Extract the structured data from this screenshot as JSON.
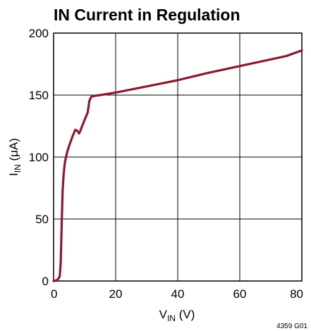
{
  "chart_data": {
    "type": "line",
    "title": "IN Current in Regulation",
    "xlabel": {
      "main": "V",
      "sub": "IN",
      "unit": " (V)"
    },
    "ylabel": {
      "main": "I",
      "sub": "IN",
      "unit": " (μA)"
    },
    "xlim": [
      0,
      80
    ],
    "ylim": [
      0,
      200
    ],
    "xticks": [
      "0",
      "20",
      "40",
      "60",
      "80"
    ],
    "yticks": [
      "0",
      "50",
      "100",
      "150",
      "200"
    ],
    "grid": true,
    "line_color": "#8b1a2e",
    "note": "4359 G01",
    "series": [
      {
        "x": [
          0,
          1,
          1.6,
          2,
          2.3,
          2.6,
          2.9,
          3.2,
          3.6,
          4,
          4.5,
          5,
          6,
          7,
          7.7,
          8.2,
          8.6,
          9.2,
          10,
          11,
          11.5,
          12,
          12.5,
          13.5,
          15,
          20,
          25,
          30,
          35,
          40,
          45,
          50,
          55,
          60,
          65,
          70,
          75,
          80
        ],
        "y": [
          0,
          0.5,
          2,
          4,
          15,
          45,
          72,
          85,
          95,
          100,
          105,
          109,
          116,
          122,
          121,
          119,
          121,
          125,
          130,
          136,
          145,
          148,
          149,
          149.5,
          150,
          152,
          154.5,
          157,
          159.5,
          162,
          165,
          168,
          170.7,
          173.4,
          176.1,
          178.8,
          181.5,
          186
        ]
      }
    ]
  }
}
